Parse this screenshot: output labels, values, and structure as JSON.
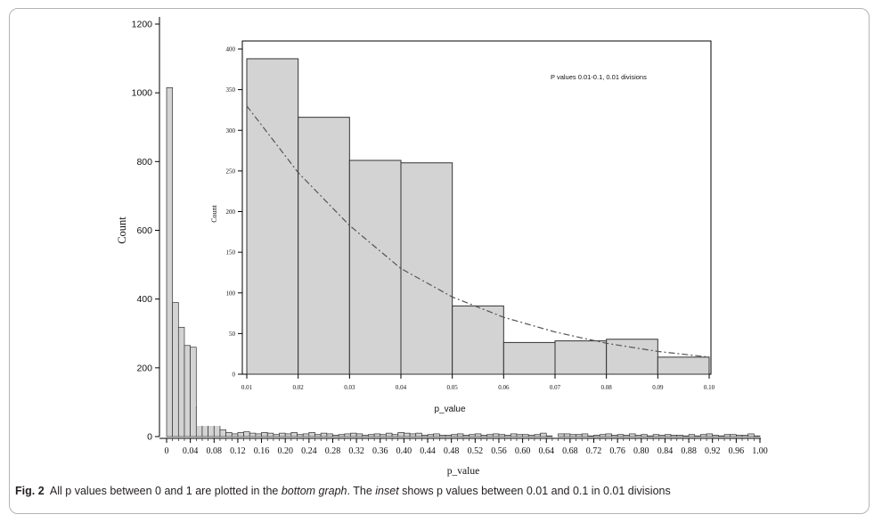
{
  "caption": {
    "label": "Fig. 2",
    "text_a": "All p values between 0 and 1 are plotted in the",
    "emph_a": "bottom graph",
    "text_b": ". The",
    "emph_b": "inset",
    "text_c": "shows p values between 0.01 and 0.1 in 0.01 divisions"
  },
  "colors": {
    "bar_fill": "#d3d3d3",
    "bar_stroke": "#333333",
    "axis": "#000000",
    "curve": "#555555"
  },
  "chart_data": [
    {
      "id": "main",
      "type": "bar",
      "xlabel": "p_value",
      "ylabel": "Count",
      "xlim": [
        0,
        1.0
      ],
      "ylim": [
        0,
        1200
      ],
      "yticks": [
        "0",
        "200",
        "400",
        "600",
        "800",
        "1000",
        "1200"
      ],
      "xticks": [
        "0",
        "0.04",
        "0.08",
        "0.12",
        "0.16",
        "0.20",
        "0.24",
        "0.28",
        "0.32",
        "0.36",
        "0.40",
        "0.44",
        "0.48",
        "0.52",
        "0.56",
        "0.60",
        "0.64",
        "0.68",
        "0.72",
        "0.76",
        "0.80",
        "0.84",
        "0.88",
        "0.92",
        "0.96",
        "1.00"
      ],
      "bin_width": 0.01,
      "values": [
        1015,
        390,
        318,
        265,
        260,
        85,
        38,
        40,
        42,
        20,
        12,
        8,
        12,
        14,
        10,
        8,
        12,
        10,
        6,
        10,
        8,
        12,
        6,
        8,
        12,
        6,
        10,
        8,
        4,
        6,
        8,
        10,
        8,
        4,
        6,
        8,
        6,
        10,
        6,
        12,
        10,
        8,
        10,
        4,
        6,
        8,
        4,
        4,
        6,
        8,
        4,
        6,
        8,
        4,
        6,
        8,
        6,
        4,
        8,
        6,
        6,
        4,
        6,
        10,
        2,
        0,
        8,
        8,
        6,
        6,
        8,
        2,
        4,
        6,
        8,
        4,
        6,
        4,
        8,
        4,
        6,
        2,
        6,
        4,
        6,
        4,
        4,
        2,
        6,
        2,
        6,
        8,
        4,
        2,
        6,
        6,
        4,
        4,
        8,
        2
      ]
    },
    {
      "id": "inset",
      "type": "bar",
      "annotation": "P  values 0.01-0.1, 0.01 divisions",
      "xlabel": "p_value",
      "ylabel": "Count",
      "xlim": [
        0.01,
        0.1
      ],
      "ylim": [
        0,
        400
      ],
      "yticks": [
        "0",
        "50",
        "100",
        "150",
        "200",
        "250",
        "300",
        "350",
        "400"
      ],
      "xticks": [
        "0.01",
        "0.02",
        "0.03",
        "0.04",
        "0.05",
        "0.06",
        "0.07",
        "0.08",
        "0.09",
        "0.10"
      ],
      "bin_width": 0.01,
      "values": [
        388,
        316,
        263,
        260,
        84,
        39,
        41,
        43,
        21
      ],
      "fit_curve": {
        "style": "dash-dot",
        "points": [
          [
            0.01,
            330
          ],
          [
            0.02,
            248
          ],
          [
            0.03,
            183
          ],
          [
            0.04,
            130
          ],
          [
            0.05,
            95
          ],
          [
            0.06,
            70
          ],
          [
            0.07,
            52
          ],
          [
            0.08,
            38
          ],
          [
            0.09,
            28
          ],
          [
            0.1,
            21
          ]
        ]
      }
    }
  ]
}
